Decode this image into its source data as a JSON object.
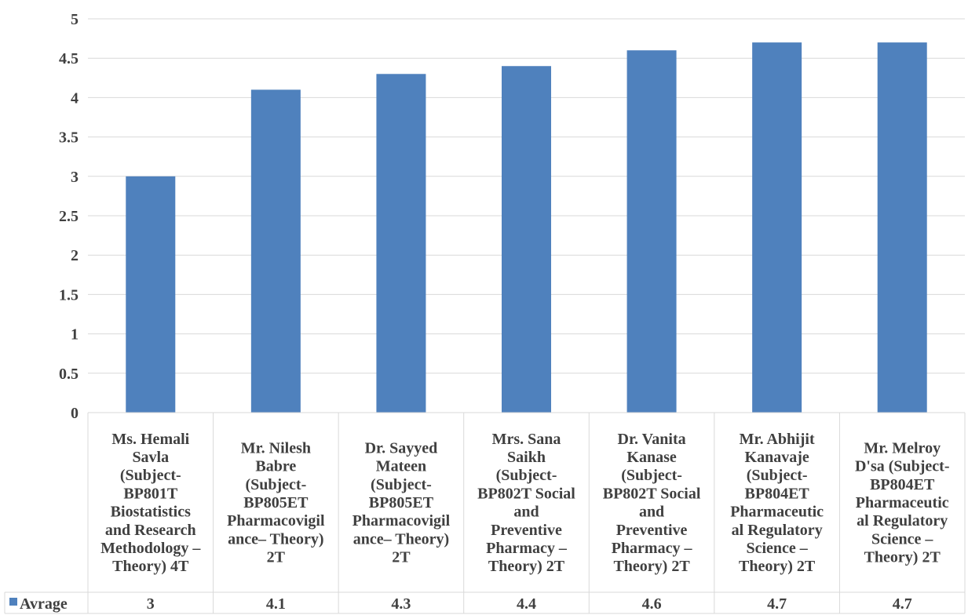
{
  "chart_data": {
    "type": "bar",
    "categories": [
      [
        "Ms. Hemali",
        "Savla",
        "(Subject-",
        "BP801T",
        "Biostatistics",
        "and Research",
        "Methodology –",
        "Theory) 4T"
      ],
      [
        "Mr. Nilesh",
        "Babre",
        "(Subject-",
        "BP805ET",
        "Pharmacovigil",
        "ance– Theory)",
        "2T"
      ],
      [
        "Dr. Sayyed",
        "Mateen",
        "(Subject-",
        "BP805ET",
        "Pharmacovigil",
        "ance– Theory)",
        "2T"
      ],
      [
        "Mrs. Sana",
        "Saikh",
        "(Subject-",
        "BP802T Social",
        "and",
        "Preventive",
        "Pharmacy –",
        "Theory) 2T"
      ],
      [
        "Dr. Vanita",
        "Kanase",
        "(Subject-",
        "BP802T Social",
        "and",
        "Preventive",
        "Pharmacy –",
        "Theory) 2T"
      ],
      [
        "Mr. Abhijit",
        "Kanavaje",
        "(Subject-",
        "BP804ET",
        "Pharmaceutic",
        "al Regulatory",
        "Science –",
        "Theory) 2T"
      ],
      [
        "Mr. Melroy",
        "D'sa (Subject-",
        "BP804ET",
        "Pharmaceutic",
        "al Regulatory",
        "Science –",
        "Theory) 2T"
      ]
    ],
    "series": [
      {
        "name": "Avrage",
        "values": [
          3,
          4.1,
          4.3,
          4.4,
          4.6,
          4.7,
          4.7
        ],
        "labels": [
          "3",
          "4.1",
          "4.3",
          "4.4",
          "4.6",
          "4.7",
          "4.7"
        ]
      }
    ],
    "ylim": [
      0,
      5
    ],
    "yticks": [
      "0",
      "0.5",
      "1",
      "1.5",
      "2",
      "2.5",
      "3",
      "3.5",
      "4",
      "4.5",
      "5"
    ],
    "grid": true,
    "legend": "left of data table",
    "data_table": true,
    "colors": {
      "bar": "#4F81BD",
      "grid": "#D9D9D9",
      "text": "#404040"
    }
  }
}
